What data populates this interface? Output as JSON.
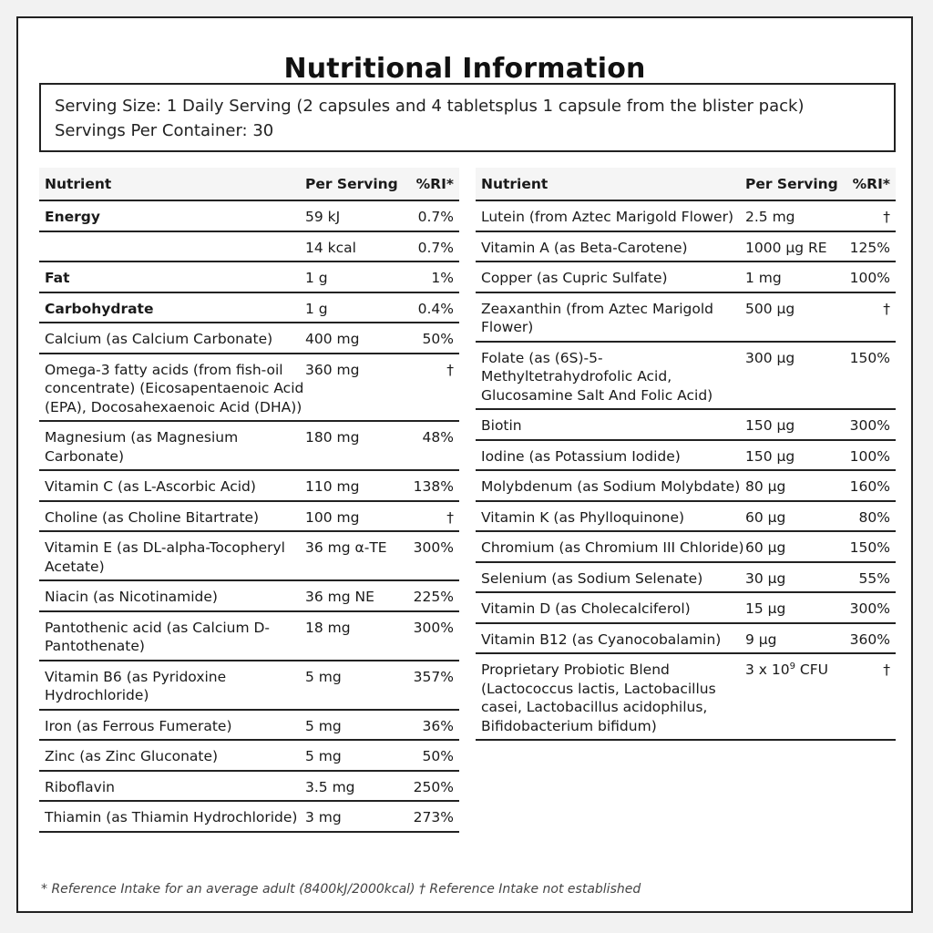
{
  "title": "Nutritional Information",
  "serving": {
    "size": "Serving Size: 1 Daily Serving (2 capsules and 4 tabletsplus 1 capsule from the blister pack)",
    "per_container": "Servings Per Container: 30"
  },
  "headers": {
    "nutrient": "Nutrient",
    "per_serving": "Per Serving",
    "ri": "%RI*"
  },
  "left_rows": [
    {
      "name": "Energy",
      "amount": "59 kJ",
      "ri": "0.7%",
      "bold": true
    },
    {
      "name": "",
      "amount": "14 kcal",
      "ri": "0.7%",
      "bold": false
    },
    {
      "name": "Fat",
      "amount": "1 g",
      "ri": "1%",
      "bold": true
    },
    {
      "name": "Carbohydrate",
      "amount": "1 g",
      "ri": "0.4%",
      "bold": true
    },
    {
      "name": "Calcium (as Calcium Carbonate)",
      "amount": "400 mg",
      "ri": "50%",
      "bold": false
    },
    {
      "name": "Omega-3 fatty acids (from fish-oil concentrate) (Eicosapentaenoic Acid (EPA), Docosahexaenoic Acid (DHA))",
      "amount": "360 mg",
      "ri": "†",
      "bold": false
    },
    {
      "name": "Magnesium (as Magnesium Carbonate)",
      "amount": "180 mg",
      "ri": "48%",
      "bold": false
    },
    {
      "name": "Vitamin C (as L-Ascorbic Acid)",
      "amount": "110 mg",
      "ri": "138%",
      "bold": false
    },
    {
      "name": "Choline (as Choline Bitartrate)",
      "amount": "100 mg",
      "ri": "†",
      "bold": false
    },
    {
      "name": "Vitamin E (as DL-alpha-Tocopheryl Acetate)",
      "amount": "36 mg α-TE",
      "ri": "300%",
      "bold": false
    },
    {
      "name": "Niacin (as Nicotinamide)",
      "amount": "36 mg NE",
      "ri": "225%",
      "bold": false
    },
    {
      "name": "Pantothenic acid (as Calcium D-Pantothenate)",
      "amount": "18 mg",
      "ri": "300%",
      "bold": false
    },
    {
      "name": "Vitamin B6 (as Pyridoxine Hydrochloride)",
      "amount": "5 mg",
      "ri": "357%",
      "bold": false
    },
    {
      "name": "Iron (as Ferrous Fumerate)",
      "amount": "5 mg",
      "ri": "36%",
      "bold": false
    },
    {
      "name": "Zinc (as Zinc Gluconate)",
      "amount": "5 mg",
      "ri": "50%",
      "bold": false
    },
    {
      "name": "Riboflavin",
      "amount": "3.5 mg",
      "ri": "250%",
      "bold": false
    },
    {
      "name": "Thiamin (as Thiamin Hydrochloride)",
      "amount": "3 mg",
      "ri": "273%",
      "bold": false
    }
  ],
  "right_rows": [
    {
      "name": "Lutein (from Aztec Marigold Flower)",
      "amount": "2.5 mg",
      "ri": "†"
    },
    {
      "name": "Vitamin A (as Beta-Carotene)",
      "amount": "1000 µg RE",
      "ri": "125%"
    },
    {
      "name": "Copper (as Cupric Sulfate)",
      "amount": "1 mg",
      "ri": "100%"
    },
    {
      "name": "Zeaxanthin (from Aztec Marigold Flower)",
      "amount": "500 µg",
      "ri": "†"
    },
    {
      "name": "Folate (as (6S)-5-Methyltetrahydrofolic Acid, Glucosamine Salt And Folic Acid)",
      "amount": "300 µg",
      "ri": "150%"
    },
    {
      "name": "Biotin",
      "amount": "150 µg",
      "ri": "300%"
    },
    {
      "name": "Iodine (as Potassium Iodide)",
      "amount": "150 µg",
      "ri": "100%"
    },
    {
      "name": "Molybdenum (as Sodium Molybdate)",
      "amount": "80 µg",
      "ri": "160%"
    },
    {
      "name": "Vitamin K (as Phylloquinone)",
      "amount": "60 µg",
      "ri": "80%"
    },
    {
      "name": "Chromium (as Chromium III Chloride)",
      "amount": "60 µg",
      "ri": "150%"
    },
    {
      "name": "Selenium (as Sodium Selenate)",
      "amount": "30 µg",
      "ri": "55%"
    },
    {
      "name": "Vitamin D (as Cholecalciferol)",
      "amount": "15 µg",
      "ri": "300%"
    },
    {
      "name": "Vitamin B12 (as Cyanocobalamin)",
      "amount": "9 µg",
      "ri": "360%"
    },
    {
      "name": "Proprietary Probiotic Blend (Lactococcus lactis, Lactobacillus casei, Lactobacillus acidophilus, Bifidobacterium bifidum)",
      "amount": "3 x 10",
      "amount_sup": "9",
      "amount_suffix": " CFU",
      "ri": "†"
    }
  ],
  "footnote": "* Reference Intake for an average adult (8400kJ/2000kcal) † Reference Intake not established"
}
